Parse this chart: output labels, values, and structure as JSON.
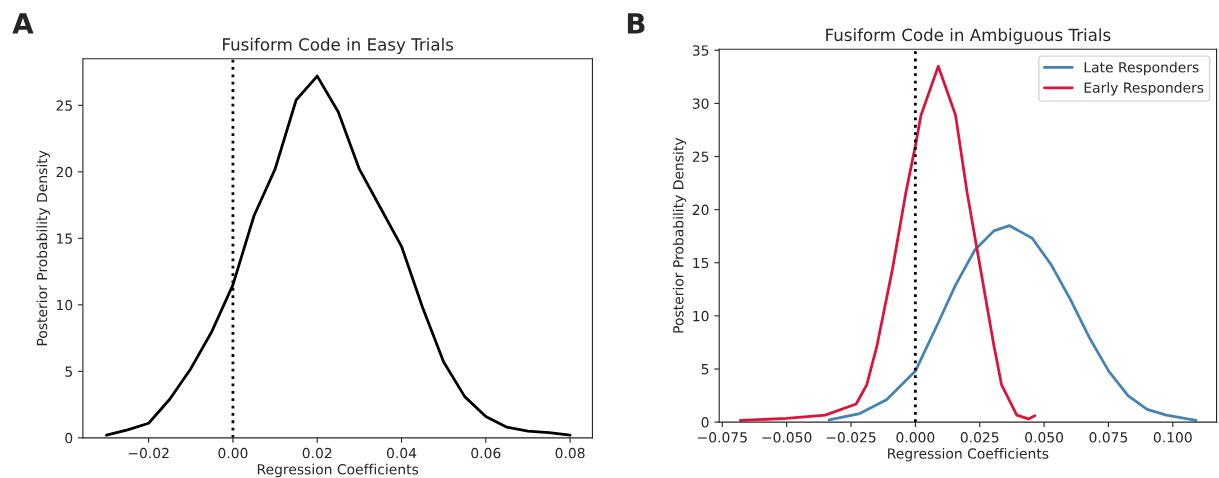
{
  "chart_data": [
    {
      "type": "line",
      "title": "Fusiform Code in Easy Trials",
      "xlabel": "Regression Coefficients",
      "ylabel": "Posterior Probability Density",
      "annotations": [
        "A"
      ],
      "series": [
        {
          "color": "#000000",
          "x": [
            -0.03,
            -0.025,
            -0.02,
            -0.015,
            -0.01,
            -0.005,
            0.0,
            0.005,
            0.01,
            0.015,
            0.02,
            0.025,
            0.03,
            0.035,
            0.04,
            0.045,
            0.05,
            0.055,
            0.06,
            0.065,
            0.07,
            0.075,
            0.08
          ],
          "values": [
            0.2,
            0.6,
            1.1,
            2.9,
            5.2,
            8.0,
            11.5,
            16.7,
            20.2,
            25.4,
            27.2,
            24.5,
            20.2,
            17.3,
            14.4,
            9.8,
            5.7,
            3.1,
            1.6,
            0.8,
            0.5,
            0.4,
            0.2
          ]
        }
      ],
      "xlim": [
        -0.0356,
        0.0853
      ],
      "ylim": [
        0,
        28.5
      ],
      "xticks": [
        {
          "value": -0.02,
          "label": "−0.02"
        },
        {
          "value": 0.0,
          "label": "0.00"
        },
        {
          "value": 0.02,
          "label": "0.02"
        },
        {
          "value": 0.04,
          "label": "0.04"
        },
        {
          "value": 0.06,
          "label": "0.06"
        },
        {
          "value": 0.08,
          "label": "0.08"
        }
      ],
      "yticks": [
        0,
        5,
        10,
        15,
        20,
        25
      ],
      "ref_lines": [
        {
          "axis": "x",
          "value": 0,
          "color": "#000000",
          "line_style": "dotted"
        }
      ],
      "grid": false,
      "legend": false,
      "line_style": "solid",
      "marker": "none"
    },
    {
      "type": "line",
      "title": "Fusiform Code in Ambiguous Trials",
      "xlabel": "Regression Coefficients",
      "ylabel": "Posterior Probability Density",
      "annotations": [
        "B"
      ],
      "series": [
        {
          "name": "Late Responders",
          "color": "#4682b4",
          "x": [
            -0.0335,
            -0.0216,
            -0.0112,
            0.0,
            0.0082,
            0.0156,
            0.0231,
            0.0305,
            0.0365,
            0.0454,
            0.0528,
            0.0603,
            0.0677,
            0.0751,
            0.0826,
            0.09,
            0.0975,
            0.109
          ],
          "values": [
            0.2,
            0.8,
            2.1,
            4.8,
            9.0,
            12.9,
            16.2,
            18.0,
            18.5,
            17.3,
            14.8,
            11.5,
            7.9,
            4.8,
            2.5,
            1.2,
            0.65,
            0.15
          ]
        },
        {
          "name": "Early Responders",
          "color": "#dc143c",
          "x": [
            -0.068,
            -0.05,
            -0.035,
            -0.023,
            -0.0189,
            -0.0149,
            -0.0089,
            -0.0037,
            0.0,
            0.0022,
            0.0089,
            0.0156,
            0.0201,
            0.0253,
            0.0305,
            0.0335,
            0.0394,
            0.0439,
            0.0464
          ],
          "values": [
            0.15,
            0.35,
            0.65,
            1.7,
            3.5,
            7.2,
            14.4,
            21.6,
            26.0,
            28.9,
            33.5,
            28.9,
            21.6,
            14.4,
            7.2,
            3.5,
            0.65,
            0.3,
            0.6
          ]
        }
      ],
      "xlim": [
        -0.0762,
        0.117
      ],
      "ylim": [
        0,
        35.1
      ],
      "xticks": [
        {
          "value": -0.075,
          "label": "−0.075"
        },
        {
          "value": -0.05,
          "label": "−0.050"
        },
        {
          "value": -0.025,
          "label": "−0.025"
        },
        {
          "value": 0.0,
          "label": "0.000"
        },
        {
          "value": 0.025,
          "label": "0.025"
        },
        {
          "value": 0.05,
          "label": "0.050"
        },
        {
          "value": 0.075,
          "label": "0.075"
        },
        {
          "value": 0.1,
          "label": "0.100"
        }
      ],
      "yticks": [
        0,
        5,
        10,
        15,
        20,
        25,
        30,
        35
      ],
      "ref_lines": [
        {
          "axis": "x",
          "value": 0,
          "color": "#000000",
          "line_style": "dotted"
        }
      ],
      "grid": false,
      "legend": "top right",
      "line_style": "solid",
      "marker": "none"
    }
  ]
}
